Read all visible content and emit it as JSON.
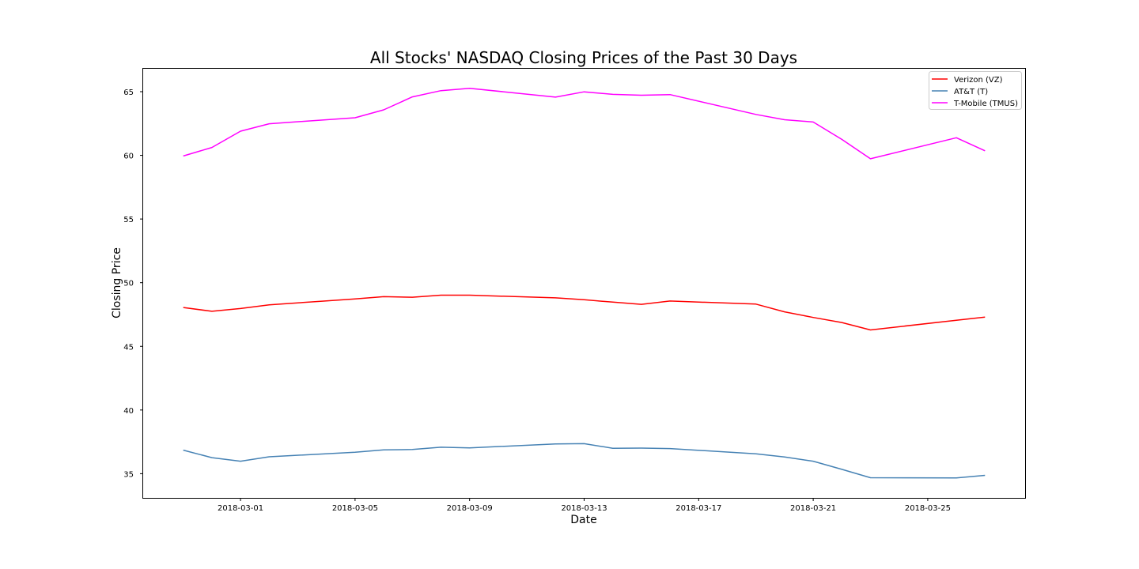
{
  "chart_data": {
    "type": "line",
    "title": "All Stocks' NASDAQ Closing Prices of the Past 30 Days",
    "xlabel": "Date",
    "ylabel": "Closing Price",
    "x": [
      "2018-02-27",
      "2018-02-28",
      "2018-03-01",
      "2018-03-02",
      "2018-03-05",
      "2018-03-06",
      "2018-03-07",
      "2018-03-08",
      "2018-03-09",
      "2018-03-12",
      "2018-03-13",
      "2018-03-14",
      "2018-03-15",
      "2018-03-16",
      "2018-03-19",
      "2018-03-20",
      "2018-03-21",
      "2018-03-22",
      "2018-03-23",
      "2018-03-26",
      "2018-03-27"
    ],
    "xticks": [
      "2018-03-01",
      "2018-03-05",
      "2018-03-09",
      "2018-03-13",
      "2018-03-17",
      "2018-03-21",
      "2018-03-25"
    ],
    "xlim": [
      "2018-02-25.6",
      "2018-03-28.4"
    ],
    "yticks": [
      35,
      40,
      45,
      50,
      55,
      60,
      65
    ],
    "ylim": [
      33.1,
      66.8
    ],
    "grid": false,
    "legend_position": "top-right",
    "series": [
      {
        "name": "Verizon (VZ)",
        "color": "#ff0000",
        "values": [
          48.05,
          47.75,
          47.97,
          48.26,
          48.72,
          48.9,
          48.86,
          49.02,
          49.02,
          48.81,
          48.66,
          48.47,
          48.3,
          48.56,
          48.32,
          47.71,
          47.27,
          46.87,
          46.29,
          47.05,
          47.3
        ]
      },
      {
        "name": "AT&T (T)",
        "color": "#4682b4",
        "values": [
          36.85,
          36.26,
          35.98,
          36.33,
          36.68,
          36.87,
          36.9,
          37.08,
          37.03,
          37.33,
          37.36,
          37.0,
          37.01,
          36.97,
          36.56,
          36.31,
          35.98,
          35.34,
          34.68,
          34.67,
          34.87
        ]
      },
      {
        "name": "T-Mobile (TMUS)",
        "color": "#ff00ff",
        "values": [
          59.95,
          60.62,
          61.9,
          62.48,
          62.95,
          63.57,
          64.59,
          65.08,
          65.27,
          64.57,
          64.99,
          64.79,
          64.72,
          64.77,
          63.21,
          62.8,
          62.62,
          61.25,
          59.73,
          61.38,
          60.36
        ]
      }
    ]
  }
}
